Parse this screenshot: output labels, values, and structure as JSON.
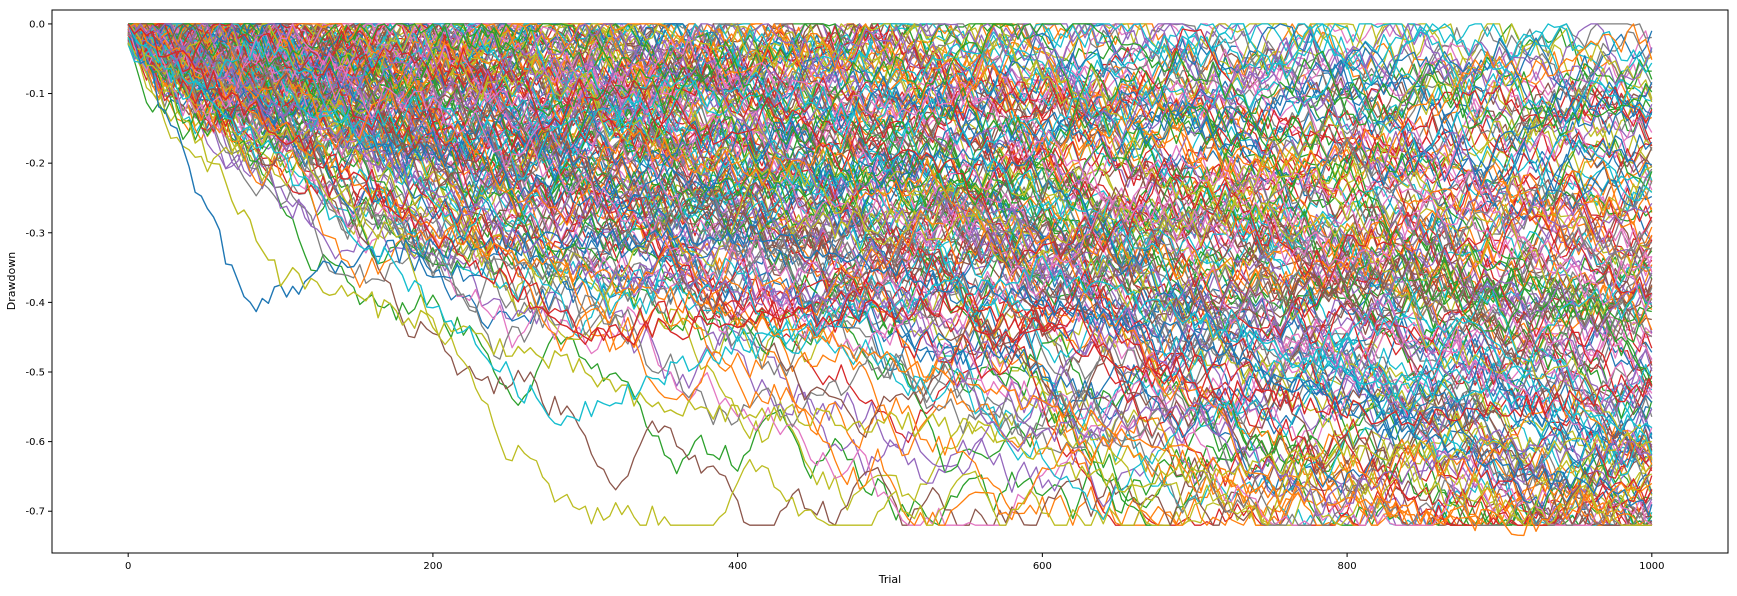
{
  "chart_data": {
    "type": "line",
    "title": "",
    "xlabel": "Trial",
    "ylabel": "Drawdown",
    "xlim": [
      -50,
      1050
    ],
    "ylim": [
      -0.76,
      0.02
    ],
    "xticks": [
      0,
      200,
      400,
      600,
      800,
      1000
    ],
    "xtick_labels": [
      "0",
      "200",
      "400",
      "600",
      "800",
      "1000"
    ],
    "yticks": [
      0.0,
      -0.1,
      -0.2,
      -0.3,
      -0.4,
      -0.5,
      -0.6,
      -0.7
    ],
    "ytick_labels": [
      "0.0",
      "-0.1",
      "-0.2",
      "-0.3",
      "-0.4",
      "-0.5",
      "-0.6",
      "-0.7"
    ],
    "grid": false,
    "legend": "none",
    "colors": [
      "#1f77b4",
      "#ff7f0e",
      "#2ca02c",
      "#d62728",
      "#9467bd",
      "#8c564b",
      "#e377c2",
      "#7f7f7f",
      "#bcbd22",
      "#17becf"
    ],
    "series_description": "Many simulated drawdown paths over 1000 trials, each starting at 0.0 and ranging down to about -0.72",
    "x_start": 0,
    "x_end": 1000,
    "representative_series": [
      {
        "color": "#1f77b4",
        "points": [
          [
            0,
            0.0
          ],
          [
            80,
            -0.41
          ],
          [
            150,
            -0.33
          ],
          [
            400,
            -0.3
          ],
          [
            700,
            -0.45
          ],
          [
            850,
            -0.6
          ],
          [
            1000,
            -0.69
          ]
        ]
      },
      {
        "color": "#ff7f0e",
        "points": [
          [
            0,
            0.0
          ],
          [
            200,
            -0.3
          ],
          [
            450,
            -0.45
          ],
          [
            620,
            -0.56
          ],
          [
            760,
            -0.68
          ],
          [
            920,
            -0.72
          ],
          [
            1000,
            -0.66
          ]
        ]
      },
      {
        "color": "#bcbd22",
        "points": [
          [
            0,
            0.0
          ],
          [
            100,
            -0.36
          ],
          [
            300,
            -0.5
          ],
          [
            340,
            -0.55
          ],
          [
            550,
            -0.58
          ],
          [
            650,
            -0.66
          ],
          [
            800,
            -0.62
          ],
          [
            1000,
            -0.6
          ]
        ]
      },
      {
        "color": "#17becf",
        "points": [
          [
            0,
            0.0
          ],
          [
            200,
            -0.4
          ],
          [
            280,
            -0.57
          ],
          [
            400,
            -0.46
          ],
          [
            600,
            -0.35
          ],
          [
            800,
            -0.5
          ],
          [
            1000,
            -0.58
          ]
        ]
      },
      {
        "color": "#9467bd",
        "points": [
          [
            0,
            0.0
          ],
          [
            300,
            -0.36
          ],
          [
            500,
            -0.4
          ],
          [
            580,
            -0.6
          ],
          [
            700,
            -0.55
          ],
          [
            780,
            -0.69
          ],
          [
            900,
            -0.6
          ],
          [
            1000,
            -0.62
          ]
        ]
      },
      {
        "color": "#d62728",
        "points": [
          [
            0,
            0.0
          ],
          [
            300,
            -0.45
          ],
          [
            550,
            -0.4
          ],
          [
            700,
            -0.52
          ],
          [
            850,
            -0.57
          ],
          [
            1000,
            -0.52
          ]
        ]
      }
    ]
  }
}
